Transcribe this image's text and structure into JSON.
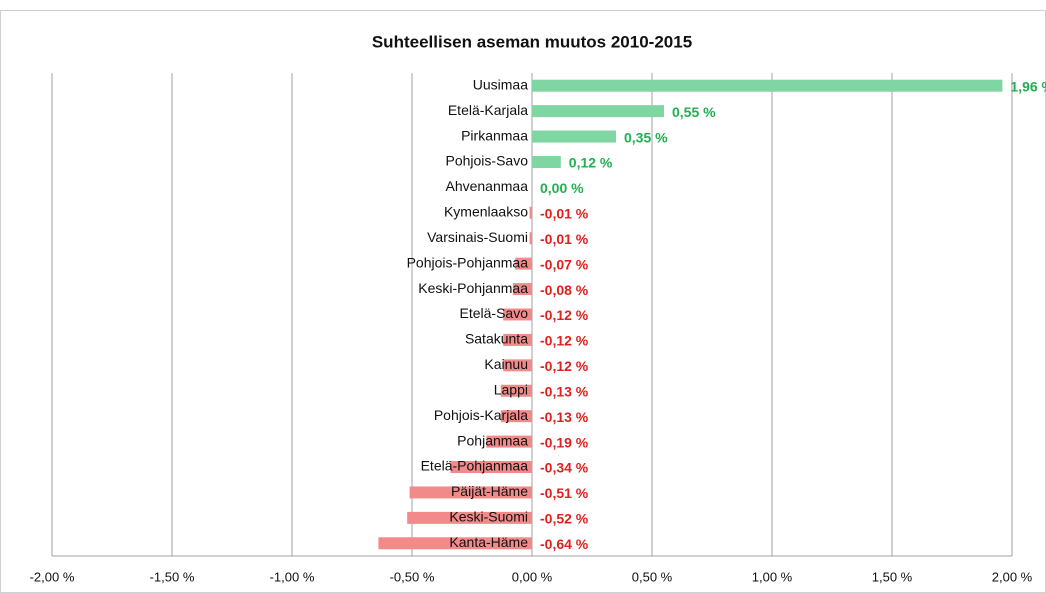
{
  "chart_data": {
    "type": "barh",
    "title": "Suhteellisen aseman muutos 2010-2015",
    "categories": [
      "Uusimaa",
      "Etelä-Karjala",
      "Pirkanmaa",
      "Pohjois-Savo",
      "Ahvenanmaa",
      "Kymenlaakso",
      "Varsinais-Suomi",
      "Pohjois-Pohjanmaa",
      "Keski-Pohjanmaa",
      "Etelä-Savo",
      "Satakunta",
      "Kainuu",
      "Lappi",
      "Pohjois-Karjala",
      "Pohjanmaa",
      "Etelä-Pohjanmaa",
      "Päijät-Häme",
      "Keski-Suomi",
      "Kanta-Häme"
    ],
    "values": [
      1.96,
      0.55,
      0.35,
      0.12,
      0.0,
      -0.01,
      -0.01,
      -0.07,
      -0.08,
      -0.12,
      -0.12,
      -0.12,
      -0.13,
      -0.13,
      -0.19,
      -0.34,
      -0.51,
      -0.52,
      -0.64
    ],
    "value_labels": [
      "1,96 %",
      "0,55 %",
      "0,35 %",
      "0,12 %",
      "0,00 %",
      "-0,01 %",
      "-0,01 %",
      "-0,07 %",
      "-0,08 %",
      "-0,12 %",
      "-0,12 %",
      "-0,12 %",
      "-0,13 %",
      "-0,13 %",
      "-0,19 %",
      "-0,34 %",
      "-0,51 %",
      "-0,52 %",
      "-0,64 %"
    ],
    "color_positive": "#7fd6a2",
    "color_negative": "#f28a8a",
    "label_color_positive": "#1fb050",
    "label_color_negative": "#e0201e",
    "xlim": [
      -2,
      2
    ],
    "xticks": [
      {
        "value": -2,
        "label": "-2,00 %"
      },
      {
        "value": -1.5,
        "label": "-1,50 %"
      },
      {
        "value": -1,
        "label": "-1,00 %"
      },
      {
        "value": -0.5,
        "label": "-0,50 %"
      },
      {
        "value": 0,
        "label": "0,00 %"
      },
      {
        "value": 0.5,
        "label": "0,50 %"
      },
      {
        "value": 1,
        "label": "1,00 %"
      },
      {
        "value": 1.5,
        "label": "1,50 %"
      },
      {
        "value": 2,
        "label": "2,00 %"
      }
    ],
    "grid": true
  }
}
